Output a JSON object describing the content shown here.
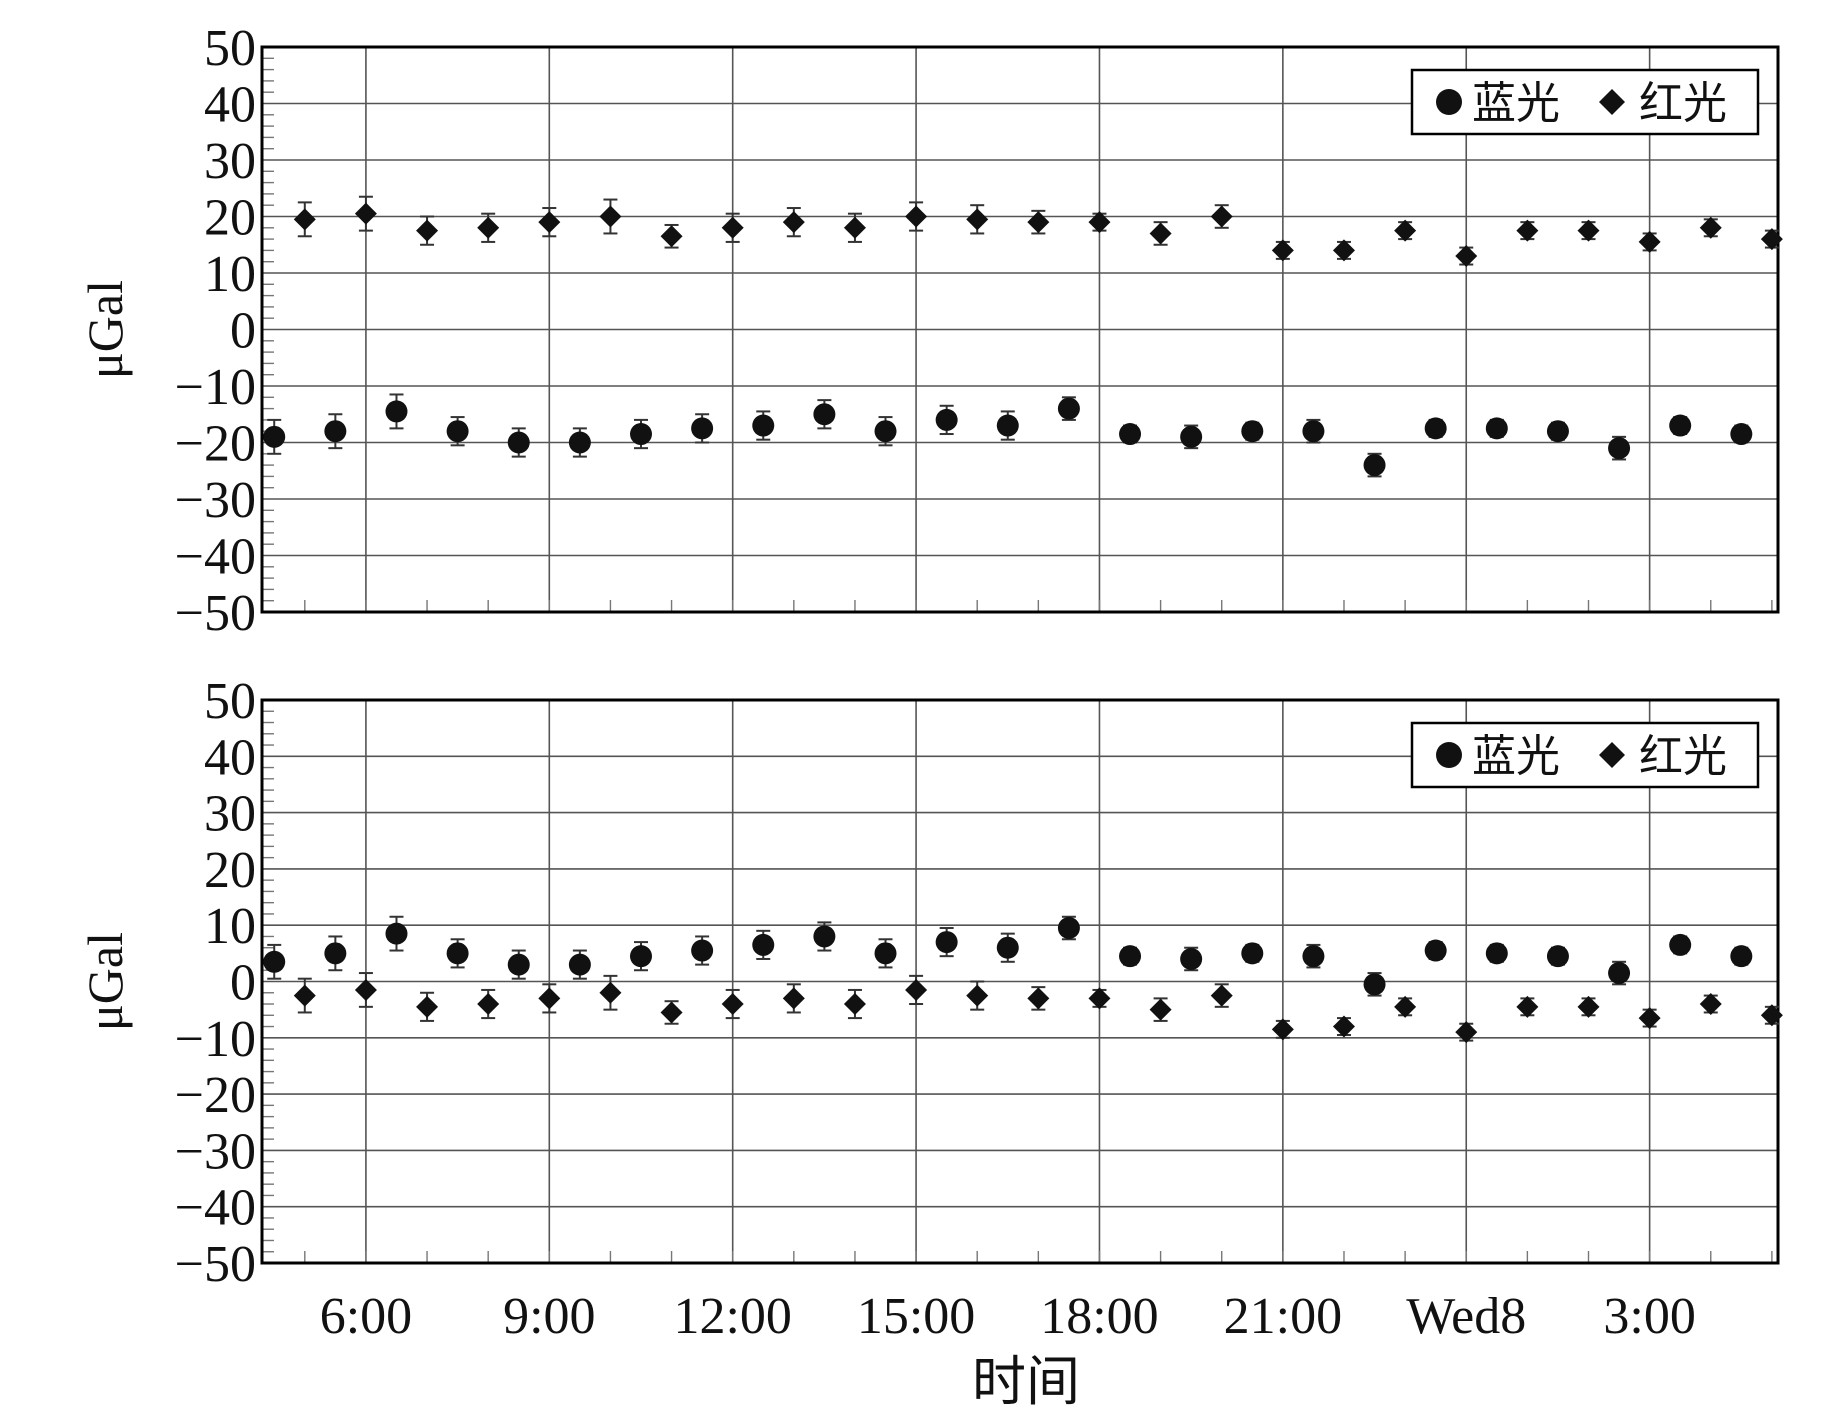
{
  "chart_data": [
    {
      "type": "scatter",
      "title": "",
      "xlabel": "",
      "ylabel": "μGal",
      "ylim": [
        -50,
        50
      ],
      "yticks": [
        50,
        40,
        30,
        20,
        10,
        0,
        -10,
        -20,
        -30,
        -40,
        -50
      ],
      "xlim": [
        4.3,
        29.1
      ],
      "xtick_labels": [
        "",
        "",
        "",
        "",
        "",
        "",
        "",
        ""
      ],
      "grid": true,
      "legend_position": "top-right",
      "series": [
        {
          "name": "蓝光",
          "marker": "circle",
          "x": [
            4.5,
            5.5,
            6.5,
            7.5,
            8.5,
            9.5,
            10.5,
            11.5,
            12.5,
            13.5,
            14.5,
            15.5,
            16.5,
            17.5,
            18.5,
            19.5,
            20.5,
            21.5,
            22.5,
            23.5,
            24.5,
            25.5,
            26.5,
            27.5,
            28.5
          ],
          "y": [
            -19,
            -18,
            -14.5,
            -18,
            -20,
            -20,
            -18.5,
            -17.5,
            -17,
            -15,
            -18,
            -16,
            -17,
            -14,
            -18.5,
            -19,
            -18,
            -18,
            -24,
            -17.5,
            -17.5,
            -18,
            -21,
            -17,
            -18.5
          ],
          "yerr": [
            3,
            3,
            3,
            2.5,
            2.5,
            2.5,
            2.5,
            2.5,
            2.5,
            2.5,
            2.5,
            2.5,
            2.5,
            2,
            1.5,
            2,
            1.5,
            2,
            2,
            1.5,
            1.5,
            1.5,
            2,
            1.5,
            1.5
          ]
        },
        {
          "name": "红光",
          "marker": "diamond",
          "x": [
            5,
            6,
            7,
            8,
            9,
            10,
            11,
            12,
            13,
            14,
            15,
            16,
            17,
            18,
            19,
            20,
            21,
            22,
            23,
            24,
            25,
            26,
            27,
            28,
            29
          ],
          "y": [
            19.5,
            20.5,
            17.5,
            18,
            19,
            20,
            16.5,
            18,
            19,
            18,
            20,
            19.5,
            19,
            19,
            17,
            20,
            14,
            14,
            17.5,
            13,
            17.5,
            17.5,
            15.5,
            18,
            16
          ],
          "yerr": [
            3,
            3,
            2.5,
            2.5,
            2.5,
            3,
            2,
            2.5,
            2.5,
            2.5,
            2.5,
            2.5,
            2,
            1.5,
            2,
            2,
            1.5,
            1.5,
            1.5,
            1.5,
            1.5,
            1.5,
            1.5,
            1.5,
            1.5
          ]
        }
      ]
    },
    {
      "type": "scatter",
      "title": "",
      "xlabel": "时间",
      "ylabel": "μGal",
      "ylim": [
        -50,
        50
      ],
      "yticks": [
        50,
        40,
        30,
        20,
        10,
        0,
        -10,
        -20,
        -30,
        -40,
        -50
      ],
      "xlim": [
        4.3,
        29.1
      ],
      "xtick_labels": [
        "6:00",
        "9:00",
        "12:00",
        "15:00",
        "18:00",
        "21:00",
        "Wed8",
        "3:00"
      ],
      "grid": true,
      "legend_position": "top-right",
      "series": [
        {
          "name": "蓝光",
          "marker": "circle",
          "x": [
            4.5,
            5.5,
            6.5,
            7.5,
            8.5,
            9.5,
            10.5,
            11.5,
            12.5,
            13.5,
            14.5,
            15.5,
            16.5,
            17.5,
            18.5,
            19.5,
            20.5,
            21.5,
            22.5,
            23.5,
            24.5,
            25.5,
            26.5,
            27.5,
            28.5
          ],
          "y": [
            3.5,
            5,
            8.5,
            5,
            3,
            3,
            4.5,
            5.5,
            6.5,
            8,
            5,
            7,
            6,
            9.5,
            4.5,
            4,
            5,
            4.5,
            -0.5,
            5.5,
            5,
            4.5,
            1.5,
            6.5,
            4.5
          ],
          "yerr": [
            3,
            3,
            3,
            2.5,
            2.5,
            2.5,
            2.5,
            2.5,
            2.5,
            2.5,
            2.5,
            2.5,
            2.5,
            2,
            1.5,
            2,
            1.5,
            2,
            2,
            1.5,
            1.5,
            1.5,
            2,
            1.5,
            1.5
          ]
        },
        {
          "name": "红光",
          "marker": "diamond",
          "x": [
            5,
            6,
            7,
            8,
            9,
            10,
            11,
            12,
            13,
            14,
            15,
            16,
            17,
            18,
            19,
            20,
            21,
            22,
            23,
            24,
            25,
            26,
            27,
            28,
            29
          ],
          "y": [
            -2.5,
            -1.5,
            -4.5,
            -4,
            -3,
            -2,
            -5.5,
            -4,
            -3,
            -4,
            -1.5,
            -2.5,
            -3,
            -3,
            -5,
            -2.5,
            -8.5,
            -8,
            -4.5,
            -9,
            -4.5,
            -4.5,
            -6.5,
            -4,
            -6
          ],
          "yerr": [
            3,
            3,
            2.5,
            2.5,
            2.5,
            3,
            2,
            2.5,
            2.5,
            2.5,
            2.5,
            2.5,
            2,
            1.5,
            2,
            2,
            1.5,
            1.5,
            1.5,
            1.5,
            1.5,
            1.5,
            1.5,
            1.5,
            1.5
          ]
        }
      ]
    }
  ],
  "colors": {
    "marker": "#111111",
    "errorbar": "#333333",
    "grid": "#555555",
    "frame": "#000000"
  }
}
